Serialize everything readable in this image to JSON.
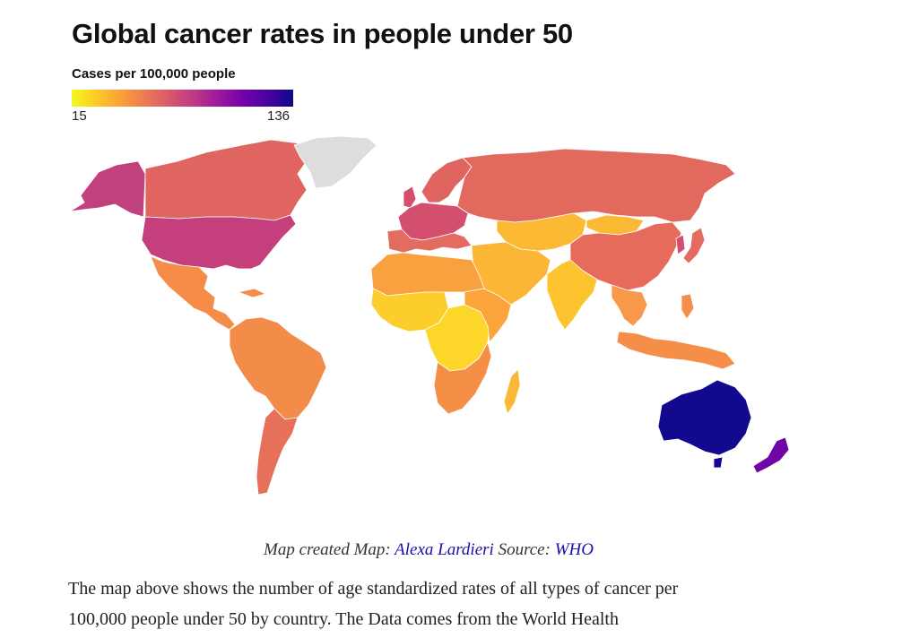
{
  "title": "Global cancer rates in people under 50",
  "legend": {
    "title": "Cases per 100,000 people",
    "min_label": "15",
    "max_label": "136",
    "colors": [
      "#f0f921",
      "#fdca26",
      "#fb9f3a",
      "#ed7953",
      "#d8576b",
      "#bd3786",
      "#9c179e",
      "#7201a8",
      "#46039f",
      "#0d0887"
    ]
  },
  "map": {
    "no_data_color": "#dddddd",
    "region_colors": {
      "north_america_usa": "#c43f7c",
      "canada": "#e0645f",
      "alaska": "#c1417f",
      "greenland": "#dddddd",
      "mexico_central": "#f58d48",
      "south_america": "#f48c49",
      "south_america_south": "#e7705a",
      "europe_west": "#d44f6e",
      "europe_south": "#e46b5f",
      "scandinavia": "#e0645f",
      "russia": "#e2695e",
      "central_asia": "#fbb934",
      "china": "#e66b5a",
      "india": "#fdc430",
      "middle_east": "#fbb636",
      "north_africa": "#f9a13e",
      "west_africa": "#fdcd2b",
      "central_africa": "#fcd629",
      "east_africa": "#fba53c",
      "southern_africa": "#f58f46",
      "southeast_asia": "#f7984a",
      "indonesia": "#f58e48",
      "australia": "#13098e",
      "new_zealand": "#6e06a6",
      "madagascar": "#fbb737"
    }
  },
  "caption": {
    "prefix": "Map created Map: ",
    "author": "Alexa Lardieri",
    "source_prefix": " Source: ",
    "source": "WHO"
  },
  "body": {
    "line1": "The map above shows the number of age standardized rates of all types of cancer per",
    "line2": "100,000 people under 50 by country. The Data comes from the World Health"
  }
}
